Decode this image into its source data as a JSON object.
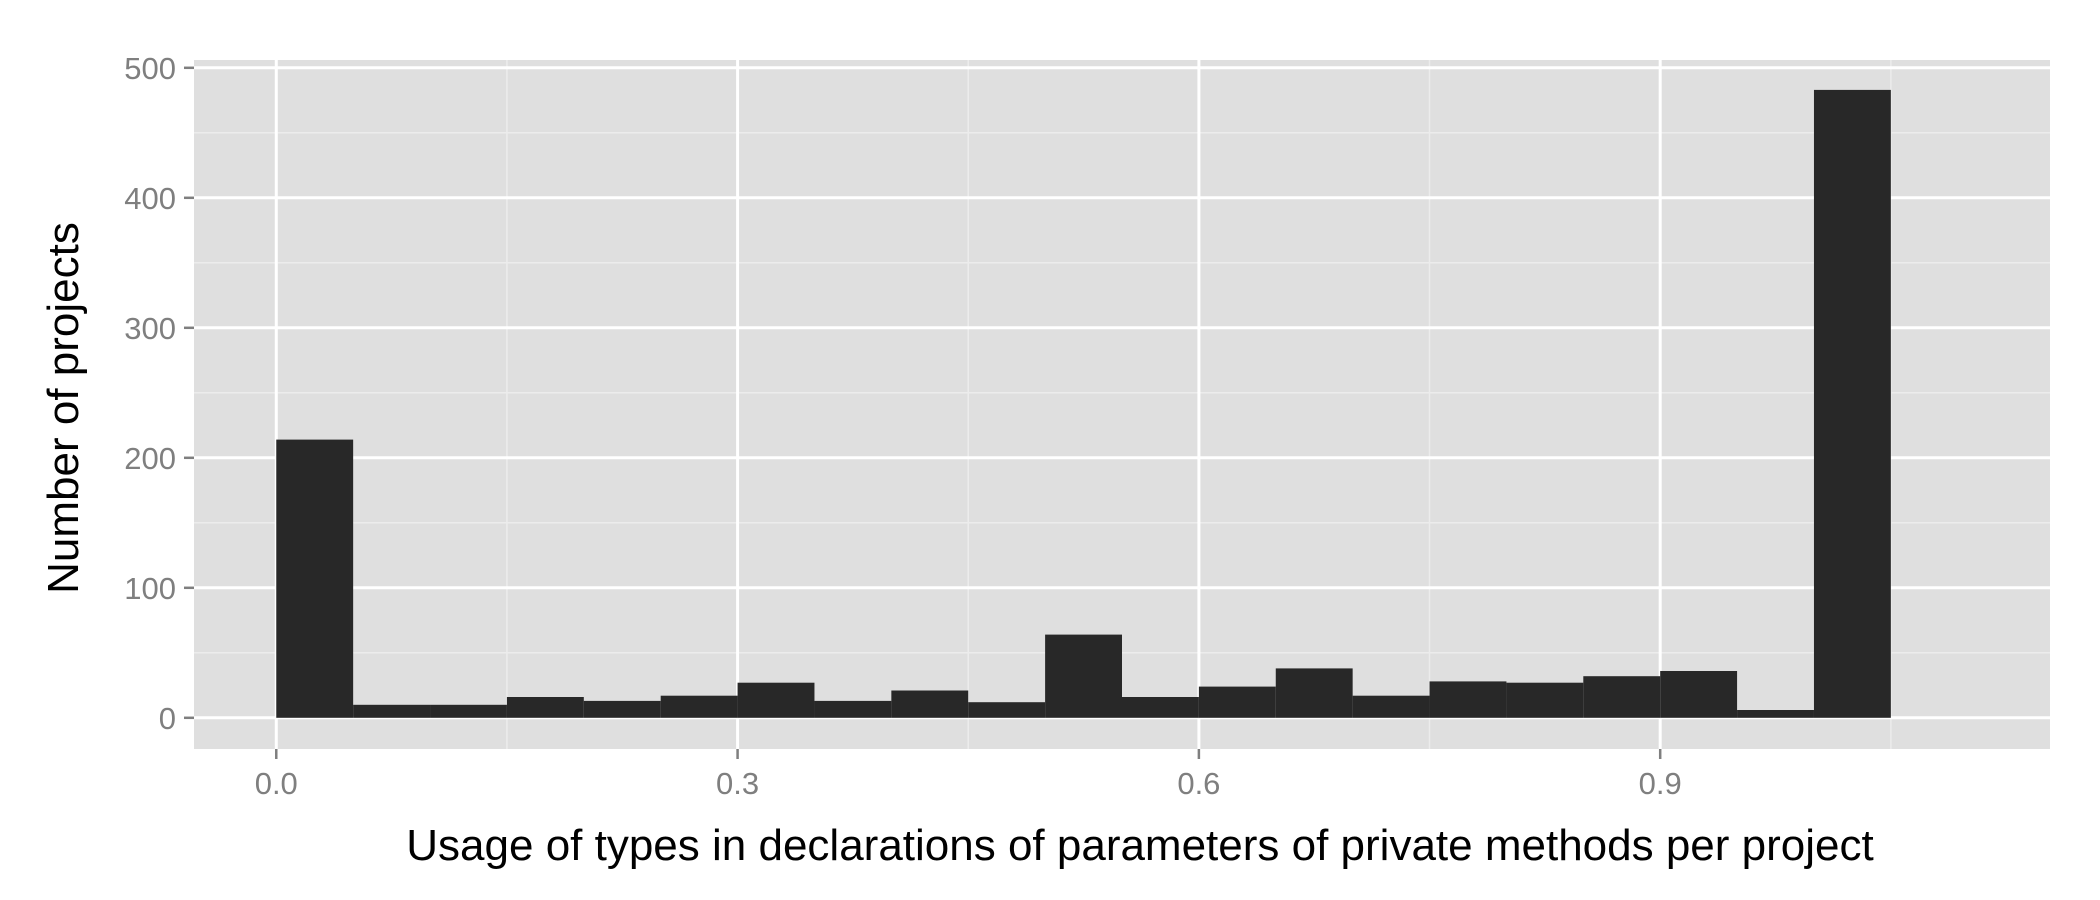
{
  "chart_data": {
    "type": "bar",
    "xlabel": "Usage of types in declarations of parameters of private methods per project",
    "ylabel": "Number of projects",
    "bin_width": 0.05,
    "bins": [
      {
        "x0": 0.0,
        "x1": 0.05,
        "count": 214
      },
      {
        "x0": 0.05,
        "x1": 0.1,
        "count": 10
      },
      {
        "x0": 0.1,
        "x1": 0.15,
        "count": 10
      },
      {
        "x0": 0.15,
        "x1": 0.2,
        "count": 16
      },
      {
        "x0": 0.2,
        "x1": 0.25,
        "count": 13
      },
      {
        "x0": 0.25,
        "x1": 0.3,
        "count": 17
      },
      {
        "x0": 0.3,
        "x1": 0.35,
        "count": 27
      },
      {
        "x0": 0.35,
        "x1": 0.4,
        "count": 13
      },
      {
        "x0": 0.4,
        "x1": 0.45,
        "count": 21
      },
      {
        "x0": 0.45,
        "x1": 0.5,
        "count": 12
      },
      {
        "x0": 0.5,
        "x1": 0.55,
        "count": 64
      },
      {
        "x0": 0.55,
        "x1": 0.6,
        "count": 16
      },
      {
        "x0": 0.6,
        "x1": 0.65,
        "count": 24
      },
      {
        "x0": 0.65,
        "x1": 0.7,
        "count": 38
      },
      {
        "x0": 0.7,
        "x1": 0.75,
        "count": 17
      },
      {
        "x0": 0.75,
        "x1": 0.8,
        "count": 28
      },
      {
        "x0": 0.8,
        "x1": 0.85,
        "count": 27
      },
      {
        "x0": 0.85,
        "x1": 0.9,
        "count": 32
      },
      {
        "x0": 0.9,
        "x1": 0.95,
        "count": 36
      },
      {
        "x0": 0.95,
        "x1": 1.0,
        "count": 6
      },
      {
        "x0": 1.0,
        "x1": 1.05,
        "count": 483
      }
    ],
    "xlim": [
      -0.0535,
      1.1535
    ],
    "ylim": [
      -24,
      506
    ],
    "x_ticks": [
      0.0,
      0.3,
      0.6,
      0.9
    ],
    "x_tick_labels": [
      "0.0",
      "0.3",
      "0.6",
      "0.9"
    ],
    "y_ticks": [
      0,
      100,
      200,
      300,
      400,
      500
    ],
    "y_tick_labels": [
      "0",
      "100",
      "200",
      "300",
      "400",
      "500"
    ],
    "grid": true,
    "legend": "none",
    "colors": {
      "panel": "#dfdfdf",
      "grid_major": "#ffffff",
      "grid_minor": "#ececec",
      "bar": "#282828",
      "tick": "#7f7f7f"
    }
  }
}
